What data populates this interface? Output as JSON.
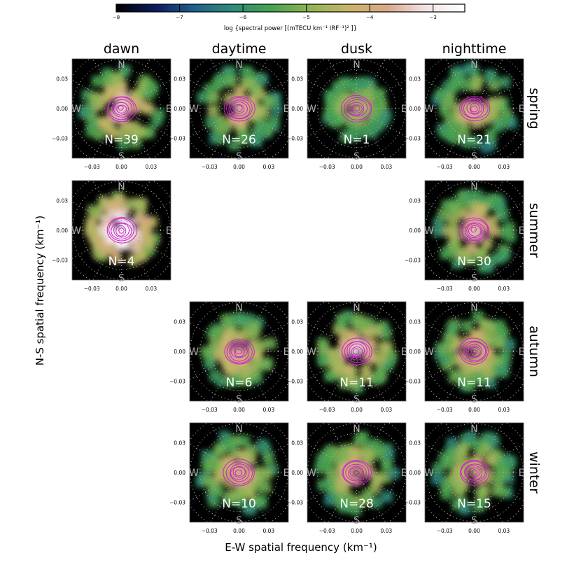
{
  "chart_data": {
    "type": "heatmap",
    "title": "",
    "colorbar": {
      "label": "log {spectral power [(mTECU km⁻¹ IRF⁻¹)² ]}",
      "ticks": [
        "−8",
        "−7",
        "−6",
        "−5",
        "−4",
        "−3"
      ],
      "range": [
        -8,
        -2.5
      ],
      "colors": [
        "#000000",
        "#0b1a5e",
        "#1f5f8a",
        "#2e8a7a",
        "#47a24e",
        "#8fb453",
        "#c8b468",
        "#d9a988",
        "#f2e4e4",
        "#ffffff"
      ]
    },
    "xlabel": "E-W spatial frequency (km⁻¹)",
    "ylabel": "N-S spatial frequency (km⁻¹)",
    "xticks": [
      "−0.03",
      "0.00",
      "0.03"
    ],
    "yticks": [
      "0.03",
      "0.00",
      "−0.03"
    ],
    "xlim": [
      -0.05,
      0.05
    ],
    "ylim": [
      -0.05,
      0.05
    ],
    "compass": {
      "n": "N",
      "s": "S",
      "e": "E",
      "w": "W"
    },
    "columns": [
      "dawn",
      "daytime",
      "dusk",
      "nighttime"
    ],
    "rows": [
      "spring",
      "summer",
      "autumn",
      "winter"
    ],
    "panels": [
      {
        "row": 0,
        "col": 0,
        "label": "N=39",
        "spread": 0.9,
        "peak": 0.72
      },
      {
        "row": 0,
        "col": 1,
        "label": "N=26",
        "spread": 0.9,
        "peak": 0.62
      },
      {
        "row": 0,
        "col": 2,
        "label": "N=1",
        "spread": 0.7,
        "peak": 0.45
      },
      {
        "row": 0,
        "col": 3,
        "label": "N=21",
        "spread": 0.95,
        "peak": 0.6
      },
      {
        "row": 1,
        "col": 0,
        "label": "N=4",
        "spread": 0.8,
        "peak": 0.95
      },
      {
        "row": 1,
        "col": 3,
        "label": "N=30",
        "spread": 0.9,
        "peak": 0.66
      },
      {
        "row": 2,
        "col": 1,
        "label": "N=6",
        "spread": 0.8,
        "peak": 0.62
      },
      {
        "row": 2,
        "col": 2,
        "label": "N=11",
        "spread": 0.85,
        "peak": 0.72
      },
      {
        "row": 2,
        "col": 3,
        "label": "N=11",
        "spread": 0.85,
        "peak": 0.62
      },
      {
        "row": 3,
        "col": 1,
        "label": "N=10",
        "spread": 0.9,
        "peak": 0.6
      },
      {
        "row": 3,
        "col": 2,
        "label": "N=28",
        "spread": 0.9,
        "peak": 0.62
      },
      {
        "row": 3,
        "col": 3,
        "label": "N=15",
        "spread": 0.9,
        "peak": 0.58
      }
    ]
  }
}
